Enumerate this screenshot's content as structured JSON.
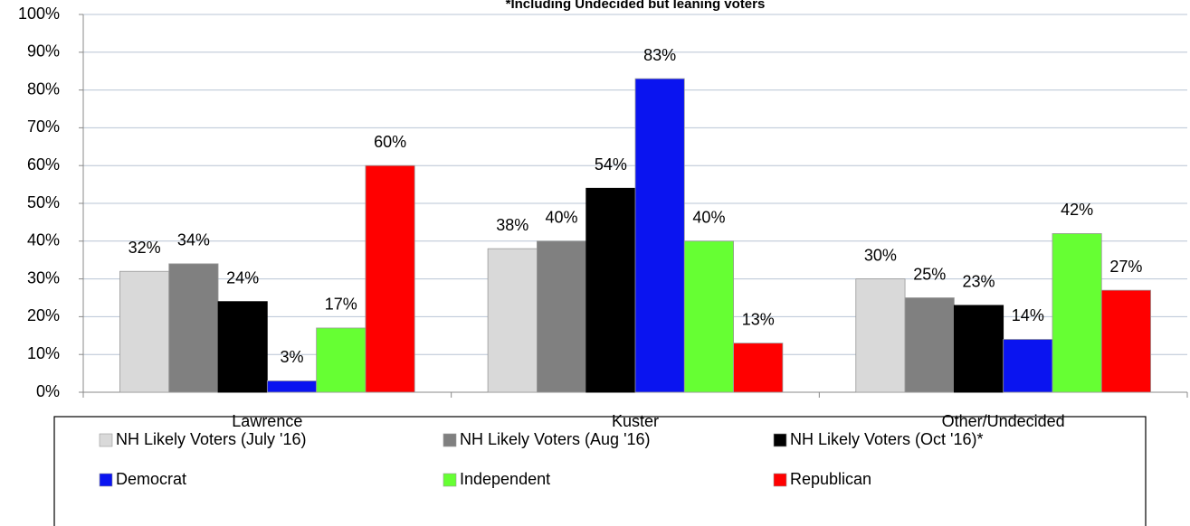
{
  "chart_data": {
    "type": "bar",
    "title": "*Including Undecided but leaning voters",
    "categories": [
      "Lawrence",
      "Kuster",
      "Other/Undecided"
    ],
    "series": [
      {
        "name": "NH Likely Voters (July '16)",
        "color": "#d9d9d9",
        "values": [
          32,
          38,
          30
        ],
        "value_labels": [
          "32%",
          "38%",
          "30%"
        ]
      },
      {
        "name": "NH Likely Voters (Aug '16)",
        "color": "#808080",
        "values": [
          34,
          40,
          25
        ],
        "value_labels": [
          "34%",
          "40%",
          "25%"
        ]
      },
      {
        "name": "NH Likely Voters (Oct '16)*",
        "color": "#000000",
        "values": [
          24,
          54,
          23
        ],
        "value_labels": [
          "24%",
          "54%",
          "23%"
        ]
      },
      {
        "name": "Democrat",
        "color": "#0a14f0",
        "values": [
          3,
          83,
          14
        ],
        "value_labels": [
          "3%",
          "83%",
          "14%"
        ]
      },
      {
        "name": "Independent",
        "color": "#66ff33",
        "values": [
          17,
          40,
          42
        ],
        "value_labels": [
          "17%",
          "40%",
          "42%"
        ]
      },
      {
        "name": "Republican",
        "color": "#ff0000",
        "values": [
          60,
          13,
          27
        ],
        "value_labels": [
          "60%",
          "13%",
          "27%"
        ]
      }
    ],
    "ylim": [
      0,
      100
    ],
    "yticks": [
      {
        "value": 0,
        "label": "0%"
      },
      {
        "value": 10,
        "label": "10%"
      },
      {
        "value": 20,
        "label": "20%"
      },
      {
        "value": 30,
        "label": "30%"
      },
      {
        "value": 40,
        "label": "40%"
      },
      {
        "value": 50,
        "label": "50%"
      },
      {
        "value": 60,
        "label": "60%"
      },
      {
        "value": 70,
        "label": "70%"
      },
      {
        "value": 80,
        "label": "80%"
      },
      {
        "value": 90,
        "label": "90%"
      },
      {
        "value": 100,
        "label": "100%"
      }
    ],
    "grid": true,
    "legend": "bottom"
  }
}
